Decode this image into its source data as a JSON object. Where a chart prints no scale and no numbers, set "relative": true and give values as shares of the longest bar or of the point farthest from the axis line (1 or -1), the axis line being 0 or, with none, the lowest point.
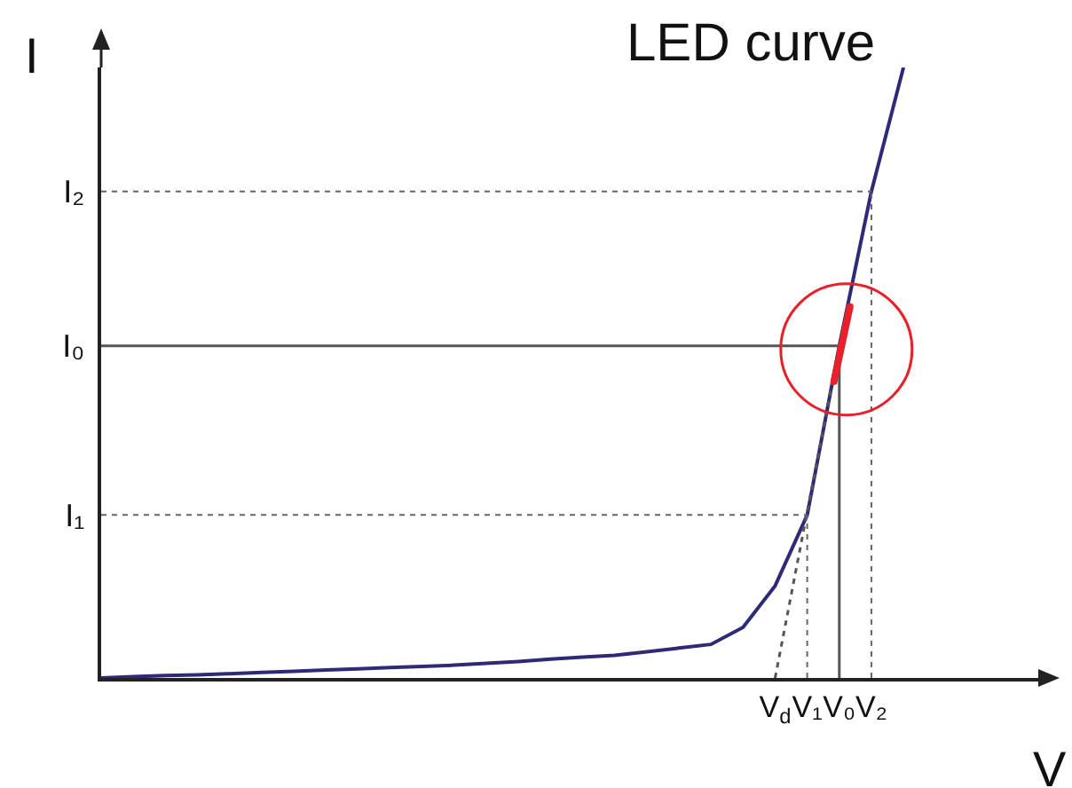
{
  "chart_data": {
    "type": "line",
    "title": "LED curve",
    "xlabel": "V",
    "ylabel": "I",
    "relative": true,
    "categories": [
      null,
      null,
      null,
      null,
      null,
      null,
      null,
      null,
      null,
      null,
      null,
      null,
      null,
      null,
      null,
      null,
      null,
      null,
      null,
      null,
      null,
      "V$_{d}$",
      "V₁",
      "V₀",
      "V₂",
      null,
      null,
      null,
      null,
      null
    ],
    "series": [
      {
        "color": "#2e2a78",
        "values": [
          0,
          0.002,
          0.004,
          0.005,
          0.007,
          0.009,
          0.011,
          0.013,
          0.015,
          0.017,
          0.019,
          0.021,
          0.024,
          0.027,
          0.031,
          0.034,
          0.037,
          0.043,
          0.049,
          0.055,
          0.083,
          0.151,
          0.267,
          0.544,
          0.797,
          1.0,
          null,
          null,
          null,
          null
        ]
      },
      {
        "color": "#555555",
        "line_style": "dotted",
        "values": [
          null,
          null,
          null,
          null,
          null,
          null,
          null,
          null,
          null,
          null,
          null,
          null,
          null,
          null,
          null,
          null,
          null,
          null,
          null,
          null,
          null,
          0,
          null,
          0.544,
          null,
          null,
          null,
          null,
          null,
          null
        ]
      }
    ],
    "ref_lines": [
      {
        "axis": "y",
        "value": 0.797,
        "label": "I₂",
        "line_style": "dotted"
      },
      {
        "axis": "y",
        "value": 0.544,
        "label": "I₀",
        "line_style": "solid"
      },
      {
        "axis": "y",
        "value": 0.267,
        "label": "I₁",
        "line_style": "dotted"
      },
      {
        "axis": "x",
        "value": "V₁",
        "line_style": "dotted"
      },
      {
        "axis": "x",
        "value": "V₀",
        "line_style": "solid"
      },
      {
        "axis": "x",
        "value": "V₂",
        "line_style": "dotted"
      }
    ],
    "grid": false,
    "marker": "none"
  }
}
